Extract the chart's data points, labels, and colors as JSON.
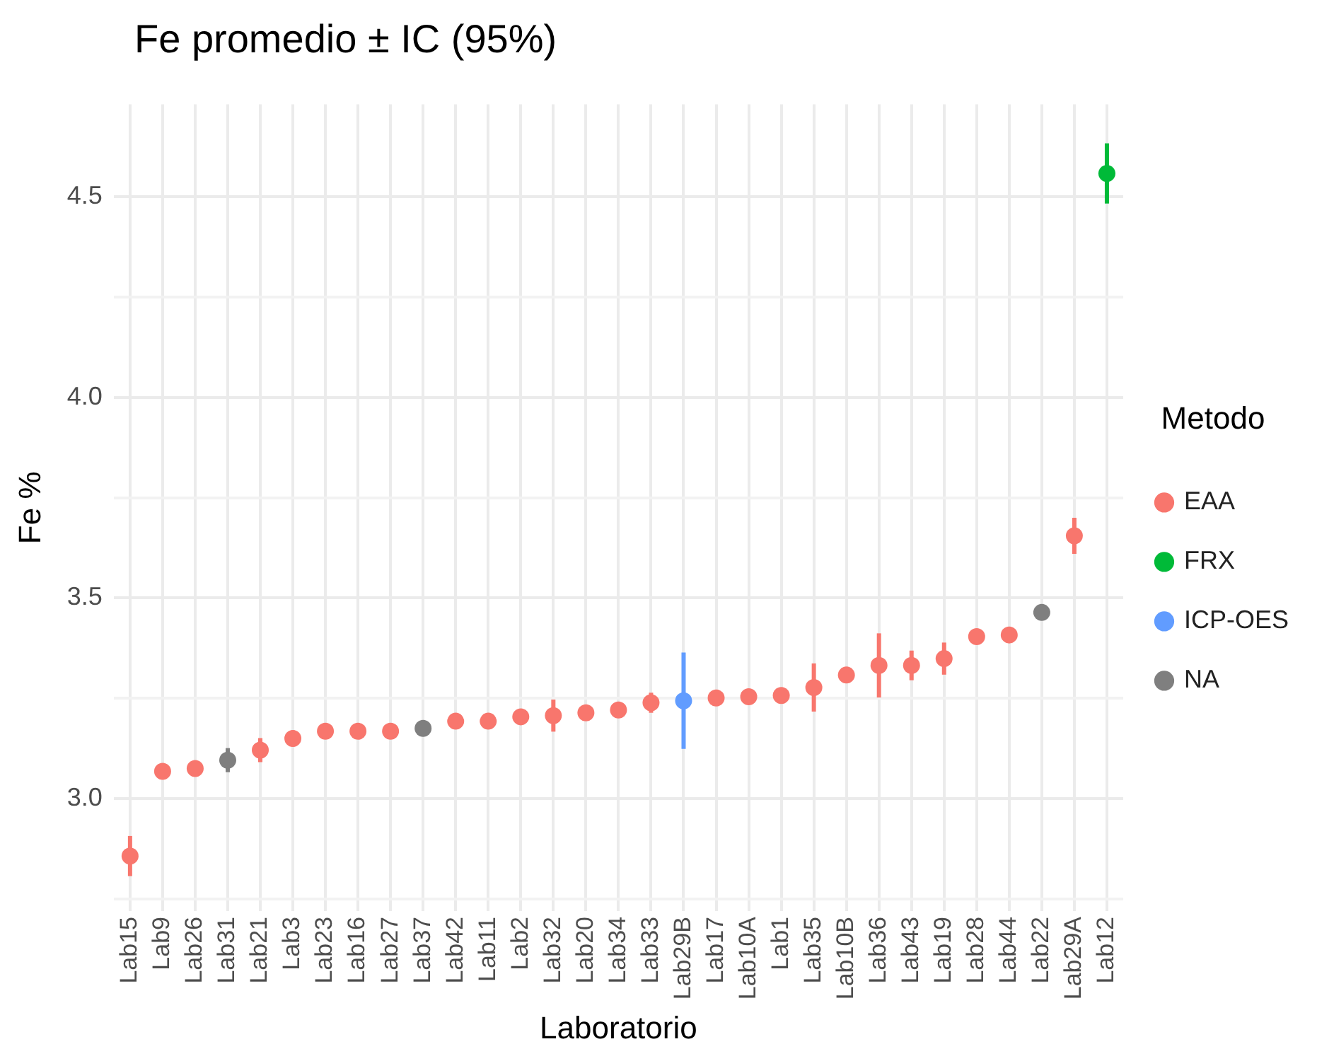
{
  "chart_data": {
    "type": "scatter",
    "title": "Fe promedio ± IC (95%)",
    "xlabel": "Laboratorio",
    "ylabel": "Fe %",
    "legend_title": "Metodo",
    "categories": [
      "Lab15",
      "Lab9",
      "Lab26",
      "Lab31",
      "Lab21",
      "Lab3",
      "Lab23",
      "Lab16",
      "Lab27",
      "Lab37",
      "Lab42",
      "Lab11",
      "Lab2",
      "Lab32",
      "Lab20",
      "Lab34",
      "Lab33",
      "Lab29B",
      "Lab17",
      "Lab10A",
      "Lab1",
      "Lab35",
      "Lab10B",
      "Lab36",
      "Lab43",
      "Lab19",
      "Lab28",
      "Lab44",
      "Lab22",
      "Lab29A",
      "Lab12"
    ],
    "series": [
      {
        "name": "EAA",
        "color": "#f8766d",
        "values": [
          2.857,
          3.068,
          3.075,
          null,
          3.121,
          3.15,
          3.168,
          3.168,
          3.168,
          null,
          3.193,
          3.193,
          3.204,
          3.207,
          3.214,
          3.221,
          3.239,
          null,
          3.251,
          3.254,
          3.257,
          3.277,
          3.308,
          3.332,
          3.332,
          3.349,
          3.404,
          3.408,
          null,
          3.655,
          null
        ],
        "errors": [
          0.05,
          null,
          null,
          null,
          0.03,
          0.02,
          null,
          null,
          null,
          null,
          null,
          null,
          null,
          0.04,
          null,
          null,
          0.025,
          null,
          null,
          null,
          0.02,
          0.06,
          null,
          0.08,
          0.037,
          0.04,
          null,
          null,
          null,
          0.045,
          null
        ]
      },
      {
        "name": "FRX",
        "color": "#00ba38",
        "values": [
          null,
          null,
          null,
          null,
          null,
          null,
          null,
          null,
          null,
          null,
          null,
          null,
          null,
          null,
          null,
          null,
          null,
          null,
          null,
          null,
          null,
          null,
          null,
          null,
          null,
          null,
          null,
          null,
          null,
          null,
          4.558
        ],
        "errors": [
          null,
          null,
          null,
          null,
          null,
          null,
          null,
          null,
          null,
          null,
          null,
          null,
          null,
          null,
          null,
          null,
          null,
          null,
          null,
          null,
          null,
          null,
          null,
          null,
          null,
          null,
          null,
          null,
          null,
          null,
          0.075
        ]
      },
      {
        "name": "ICP-OES",
        "color": "#619cff",
        "values": [
          null,
          null,
          null,
          null,
          null,
          null,
          null,
          null,
          null,
          null,
          null,
          null,
          null,
          null,
          null,
          null,
          null,
          3.244,
          null,
          null,
          null,
          null,
          null,
          null,
          null,
          null,
          null,
          null,
          null,
          null,
          null
        ],
        "errors": [
          null,
          null,
          null,
          null,
          null,
          null,
          null,
          null,
          null,
          null,
          null,
          null,
          null,
          null,
          null,
          null,
          null,
          0.12,
          null,
          null,
          null,
          null,
          null,
          null,
          null,
          null,
          null,
          null,
          null,
          null,
          null
        ]
      },
      {
        "name": "NA",
        "color": "#7f7f7f",
        "values": [
          null,
          null,
          null,
          3.096,
          null,
          null,
          null,
          null,
          null,
          3.175,
          null,
          null,
          null,
          null,
          null,
          null,
          null,
          null,
          null,
          null,
          null,
          null,
          null,
          null,
          null,
          null,
          null,
          null,
          3.464,
          null,
          null
        ],
        "errors": [
          null,
          null,
          null,
          0.03,
          null,
          null,
          null,
          null,
          null,
          null,
          null,
          null,
          null,
          null,
          null,
          null,
          null,
          null,
          null,
          null,
          null,
          null,
          null,
          null,
          null,
          null,
          null,
          null,
          null,
          null,
          null
        ]
      }
    ],
    "ylim": [
      2.72,
      4.73
    ],
    "yticks": [
      {
        "value": 2.75,
        "label": null
      },
      {
        "value": 3,
        "label": "3.0"
      },
      {
        "value": 3.25,
        "label": null
      },
      {
        "value": 3.5,
        "label": "3.5"
      },
      {
        "value": 3.75,
        "label": null
      },
      {
        "value": 4,
        "label": "4.0"
      },
      {
        "value": 4.25,
        "label": null
      },
      {
        "value": 4.5,
        "label": "4.5"
      }
    ],
    "grid": true,
    "legend": "right",
    "marker": "circle"
  }
}
